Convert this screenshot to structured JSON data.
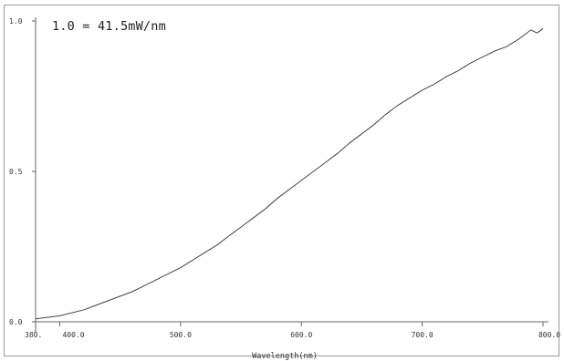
{
  "chart_data": {
    "type": "line",
    "annotation": "1.0 = 41.5mW/nm",
    "xlabel": "Wavelength(nm)",
    "ylabel": "",
    "xlim": [
      380,
      800
    ],
    "ylim": [
      0,
      1.0
    ],
    "x_tick_values": [
      380,
      400,
      500,
      600,
      700,
      800
    ],
    "x_tick_labels": [
      "380.",
      "400.0",
      "500.0",
      "600.0",
      "700.0",
      "800.0"
    ],
    "y_tick_values": [
      0,
      0.5,
      1.0
    ],
    "y_tick_labels": [
      "0.0",
      "0.5",
      "1.0"
    ],
    "grid": false,
    "series": [
      {
        "color": "#444444",
        "x": [
          380,
          390,
          400,
          410,
          420,
          430,
          440,
          450,
          460,
          470,
          480,
          490,
          500,
          510,
          520,
          530,
          540,
          550,
          560,
          570,
          580,
          590,
          600,
          610,
          620,
          630,
          640,
          650,
          660,
          670,
          680,
          690,
          700,
          710,
          720,
          730,
          740,
          750,
          760,
          770,
          780,
          785,
          790,
          795,
          800
        ],
        "y": [
          0.01,
          0.015,
          0.02,
          0.03,
          0.04,
          0.055,
          0.07,
          0.085,
          0.1,
          0.12,
          0.14,
          0.16,
          0.18,
          0.205,
          0.23,
          0.255,
          0.285,
          0.315,
          0.345,
          0.375,
          0.41,
          0.44,
          0.47,
          0.5,
          0.53,
          0.56,
          0.595,
          0.625,
          0.655,
          0.69,
          0.72,
          0.745,
          0.77,
          0.79,
          0.815,
          0.835,
          0.86,
          0.88,
          0.9,
          0.915,
          0.94,
          0.955,
          0.97,
          0.96,
          0.975
        ]
      }
    ]
  }
}
